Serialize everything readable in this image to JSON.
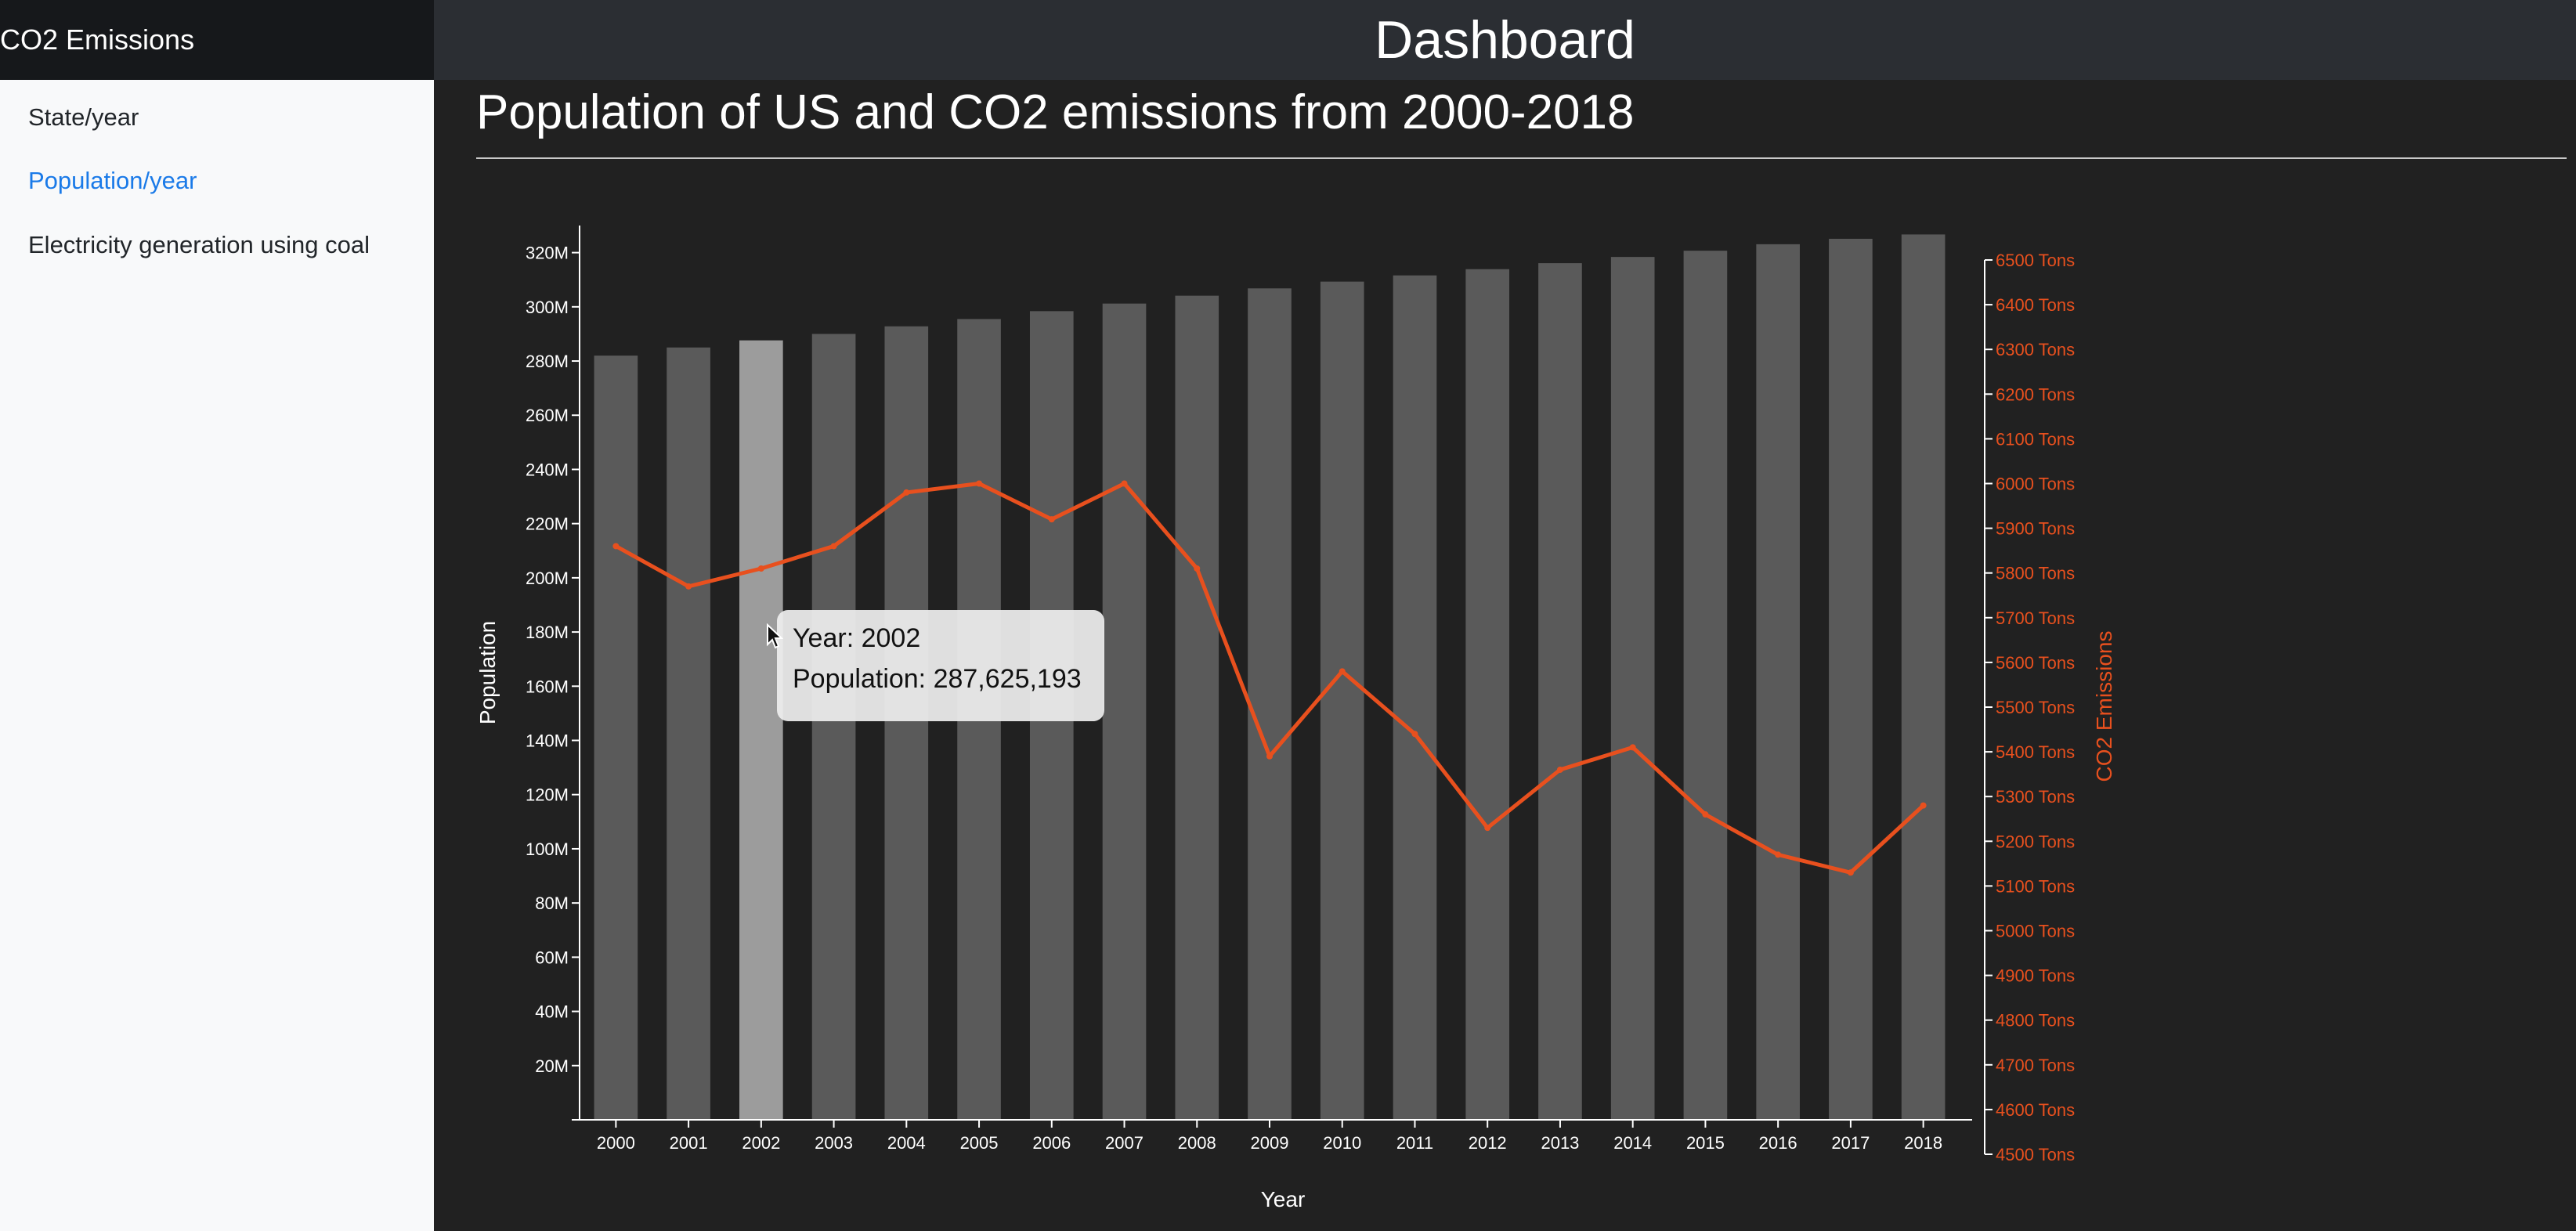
{
  "app": {
    "brand": "CO2 Emissions",
    "header_title": "Dashboard"
  },
  "sidebar": {
    "items": [
      {
        "label": "State/year",
        "active": false
      },
      {
        "label": "Population/year",
        "active": true
      },
      {
        "label": "Electricity generation using coal",
        "active": false
      }
    ]
  },
  "page": {
    "title": "Population of US and CO2 emissions from 2000-2018"
  },
  "tooltip": {
    "year_line": "Year: 2002",
    "population_line": "Population: 287,625,193"
  },
  "colors": {
    "bar": "#5a5a5a",
    "bar_highlight": "#9c9c9c",
    "line": "#e8501e",
    "accent_link": "#1a7ae8",
    "background": "#212121"
  },
  "icons": {
    "cursor": "mouse-pointer-icon"
  },
  "chart_data": {
    "type": "bar+line",
    "title": "Population of US and CO2 emissions from 2000-2018",
    "xlabel": "Year",
    "ylabel": "Population",
    "y2label": "CO2 Emissions",
    "categories": [
      "2000",
      "2001",
      "2002",
      "2003",
      "2004",
      "2005",
      "2006",
      "2007",
      "2008",
      "2009",
      "2010",
      "2011",
      "2012",
      "2013",
      "2014",
      "2015",
      "2016",
      "2017",
      "2018"
    ],
    "highlighted_category": "2002",
    "ylim": [
      0,
      330000000
    ],
    "y2lim": [
      4500,
      6500
    ],
    "y_ticks": [
      {
        "value": 20000000,
        "label": "20M"
      },
      {
        "value": 40000000,
        "label": "40M"
      },
      {
        "value": 60000000,
        "label": "60M"
      },
      {
        "value": 80000000,
        "label": "80M"
      },
      {
        "value": 100000000,
        "label": "100M"
      },
      {
        "value": 120000000,
        "label": "120M"
      },
      {
        "value": 140000000,
        "label": "140M"
      },
      {
        "value": 160000000,
        "label": "160M"
      },
      {
        "value": 180000000,
        "label": "180M"
      },
      {
        "value": 200000000,
        "label": "200M"
      },
      {
        "value": 220000000,
        "label": "220M"
      },
      {
        "value": 240000000,
        "label": "240M"
      },
      {
        "value": 260000000,
        "label": "260M"
      },
      {
        "value": 280000000,
        "label": "280M"
      },
      {
        "value": 300000000,
        "label": "300M"
      },
      {
        "value": 320000000,
        "label": "320M"
      }
    ],
    "y2_ticks": [
      {
        "value": 4500,
        "label": "4500 Tons"
      },
      {
        "value": 4600,
        "label": "4600 Tons"
      },
      {
        "value": 4700,
        "label": "4700 Tons"
      },
      {
        "value": 4800,
        "label": "4800 Tons"
      },
      {
        "value": 4900,
        "label": "4900 Tons"
      },
      {
        "value": 5000,
        "label": "5000 Tons"
      },
      {
        "value": 5100,
        "label": "5100 Tons"
      },
      {
        "value": 5200,
        "label": "5200 Tons"
      },
      {
        "value": 5300,
        "label": "5300 Tons"
      },
      {
        "value": 5400,
        "label": "5400 Tons"
      },
      {
        "value": 5500,
        "label": "5500 Tons"
      },
      {
        "value": 5600,
        "label": "5600 Tons"
      },
      {
        "value": 5700,
        "label": "5700 Tons"
      },
      {
        "value": 5800,
        "label": "5800 Tons"
      },
      {
        "value": 5900,
        "label": "5900 Tons"
      },
      {
        "value": 6000,
        "label": "6000 Tons"
      },
      {
        "value": 6100,
        "label": "6100 Tons"
      },
      {
        "value": 6200,
        "label": "6200 Tons"
      },
      {
        "value": 6300,
        "label": "6300 Tons"
      },
      {
        "value": 6400,
        "label": "6400 Tons"
      },
      {
        "value": 6500,
        "label": "6500 Tons"
      }
    ],
    "series": [
      {
        "name": "Population",
        "type": "bar",
        "axis": "left",
        "values": [
          282000000,
          285000000,
          287625193,
          290000000,
          292800000,
          295500000,
          298400000,
          301200000,
          304100000,
          306800000,
          309300000,
          311600000,
          313900000,
          316100000,
          318400000,
          320700000,
          323100000,
          325100000,
          326700000
        ]
      },
      {
        "name": "CO2 Emissions",
        "type": "line",
        "axis": "right",
        "values": [
          5860,
          5770,
          5810,
          5860,
          5980,
          6000,
          5920,
          6000,
          5810,
          5390,
          5580,
          5440,
          5230,
          5360,
          5410,
          5260,
          5170,
          5130,
          5280
        ]
      }
    ],
    "grid": false,
    "legend": "none"
  }
}
